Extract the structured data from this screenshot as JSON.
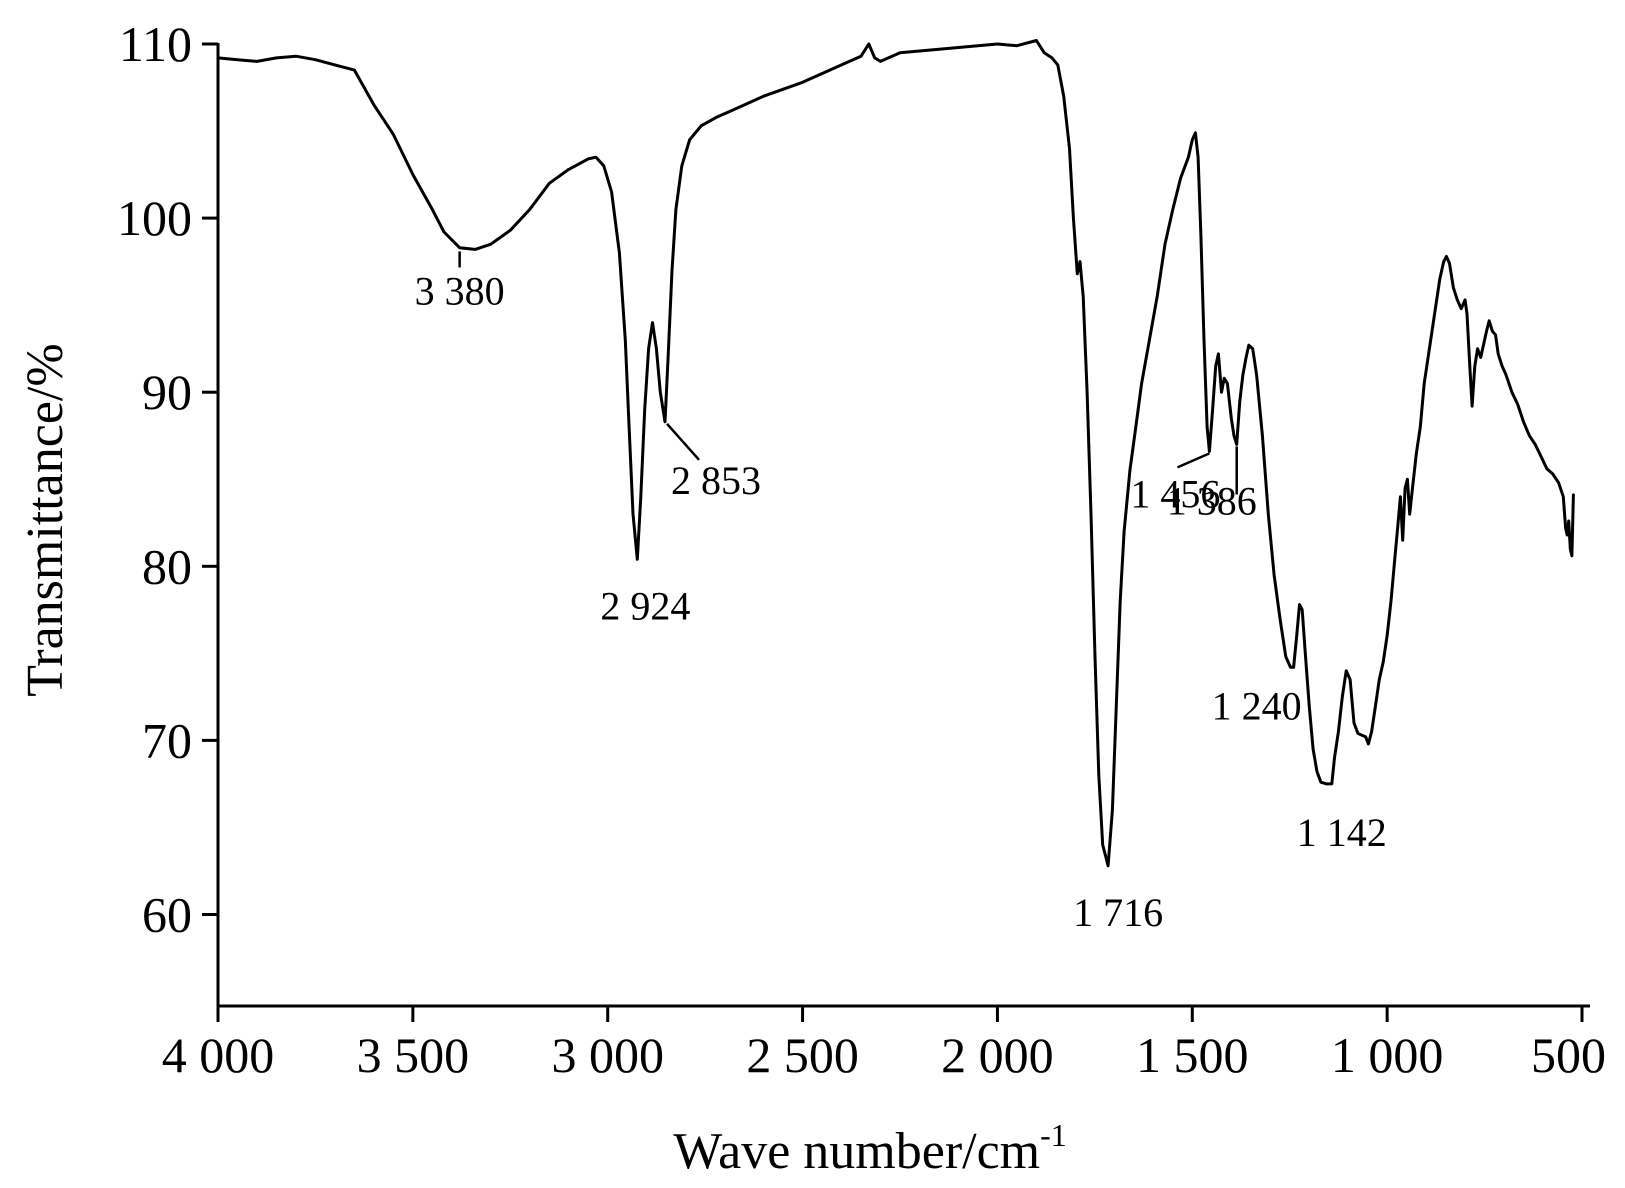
{
  "chart_data": {
    "type": "line",
    "xlabel": "Wave number/cm",
    "xlabel_superscript": "-1",
    "ylabel": "Transmittance/%",
    "xlim": [
      4000,
      450
    ],
    "ylim": [
      55,
      110
    ],
    "x_reversed": true,
    "grid": false,
    "legend": "none",
    "x_ticks": [
      4000,
      3500,
      3000,
      2500,
      2000,
      1500,
      1000,
      500
    ],
    "x_tick_labels": [
      "4 000",
      "3 500",
      "3 000",
      "2 500",
      "2 000",
      "1 500",
      "1 000",
      "500"
    ],
    "y_ticks": [
      60,
      70,
      80,
      90,
      100,
      110
    ],
    "y_tick_labels": [
      "60",
      "70",
      "80",
      "90",
      "100",
      "110"
    ],
    "series": [
      {
        "color": "#000000",
        "points": [
          [
            4000,
            109.2
          ],
          [
            3950,
            109.1
          ],
          [
            3900,
            109.0
          ],
          [
            3850,
            109.2
          ],
          [
            3800,
            109.3
          ],
          [
            3750,
            109.1
          ],
          [
            3700,
            108.8
          ],
          [
            3650,
            108.5
          ],
          [
            3600,
            106.5
          ],
          [
            3550,
            104.8
          ],
          [
            3500,
            102.5
          ],
          [
            3450,
            100.5
          ],
          [
            3420,
            99.2
          ],
          [
            3380,
            98.3
          ],
          [
            3340,
            98.2
          ],
          [
            3300,
            98.5
          ],
          [
            3250,
            99.3
          ],
          [
            3200,
            100.5
          ],
          [
            3150,
            102.0
          ],
          [
            3100,
            102.8
          ],
          [
            3050,
            103.4
          ],
          [
            3030,
            103.5
          ],
          [
            3010,
            103.0
          ],
          [
            2990,
            101.5
          ],
          [
            2970,
            98.0
          ],
          [
            2955,
            93.0
          ],
          [
            2945,
            88.0
          ],
          [
            2935,
            83.0
          ],
          [
            2924,
            80.4
          ],
          [
            2915,
            84.0
          ],
          [
            2905,
            89.0
          ],
          [
            2895,
            92.5
          ],
          [
            2885,
            94.0
          ],
          [
            2875,
            92.5
          ],
          [
            2865,
            90.0
          ],
          [
            2853,
            88.3
          ],
          [
            2845,
            92.0
          ],
          [
            2835,
            97.0
          ],
          [
            2825,
            100.5
          ],
          [
            2810,
            103.0
          ],
          [
            2790,
            104.5
          ],
          [
            2760,
            105.3
          ],
          [
            2720,
            105.8
          ],
          [
            2680,
            106.2
          ],
          [
            2600,
            107.0
          ],
          [
            2500,
            107.8
          ],
          [
            2400,
            108.8
          ],
          [
            2350,
            109.3
          ],
          [
            2330,
            110.0
          ],
          [
            2315,
            109.2
          ],
          [
            2300,
            109.0
          ],
          [
            2250,
            109.5
          ],
          [
            2200,
            109.6
          ],
          [
            2100,
            109.8
          ],
          [
            2000,
            110.0
          ],
          [
            1950,
            109.9
          ],
          [
            1900,
            110.2
          ],
          [
            1880,
            109.5
          ],
          [
            1860,
            109.2
          ],
          [
            1845,
            108.8
          ],
          [
            1830,
            107.0
          ],
          [
            1815,
            104.0
          ],
          [
            1805,
            100.0
          ],
          [
            1795,
            96.8
          ],
          [
            1788,
            97.5
          ],
          [
            1780,
            95.5
          ],
          [
            1770,
            90.0
          ],
          [
            1760,
            83.0
          ],
          [
            1750,
            75.0
          ],
          [
            1740,
            68.0
          ],
          [
            1730,
            64.0
          ],
          [
            1716,
            62.8
          ],
          [
            1705,
            66.0
          ],
          [
            1695,
            72.0
          ],
          [
            1685,
            78.0
          ],
          [
            1675,
            82.0
          ],
          [
            1660,
            85.5
          ],
          [
            1645,
            88.0
          ],
          [
            1630,
            90.5
          ],
          [
            1610,
            93.0
          ],
          [
            1590,
            95.5
          ],
          [
            1570,
            98.5
          ],
          [
            1550,
            100.5
          ],
          [
            1530,
            102.3
          ],
          [
            1510,
            103.5
          ],
          [
            1500,
            104.5
          ],
          [
            1492,
            104.9
          ],
          [
            1485,
            103.5
          ],
          [
            1478,
            99.0
          ],
          [
            1470,
            93.0
          ],
          [
            1462,
            88.0
          ],
          [
            1456,
            86.6
          ],
          [
            1448,
            89.0
          ],
          [
            1440,
            91.5
          ],
          [
            1433,
            92.2
          ],
          [
            1425,
            90.0
          ],
          [
            1418,
            90.8
          ],
          [
            1410,
            90.5
          ],
          [
            1400,
            88.5
          ],
          [
            1393,
            87.5
          ],
          [
            1386,
            87.0
          ],
          [
            1378,
            89.5
          ],
          [
            1370,
            91.0
          ],
          [
            1362,
            92.0
          ],
          [
            1355,
            92.7
          ],
          [
            1345,
            92.5
          ],
          [
            1335,
            91.0
          ],
          [
            1320,
            87.5
          ],
          [
            1305,
            83.0
          ],
          [
            1290,
            79.5
          ],
          [
            1275,
            77.0
          ],
          [
            1260,
            74.8
          ],
          [
            1248,
            74.2
          ],
          [
            1240,
            74.2
          ],
          [
            1232,
            76.0
          ],
          [
            1225,
            77.8
          ],
          [
            1218,
            77.5
          ],
          [
            1210,
            75.0
          ],
          [
            1200,
            72.0
          ],
          [
            1190,
            69.5
          ],
          [
            1180,
            68.2
          ],
          [
            1170,
            67.6
          ],
          [
            1155,
            67.5
          ],
          [
            1142,
            67.5
          ],
          [
            1135,
            69.0
          ],
          [
            1125,
            70.5
          ],
          [
            1115,
            72.5
          ],
          [
            1105,
            74.0
          ],
          [
            1095,
            73.5
          ],
          [
            1085,
            71.0
          ],
          [
            1075,
            70.4
          ],
          [
            1065,
            70.3
          ],
          [
            1055,
            70.2
          ],
          [
            1048,
            69.8
          ],
          [
            1040,
            70.5
          ],
          [
            1030,
            72.0
          ],
          [
            1020,
            73.5
          ],
          [
            1010,
            74.5
          ],
          [
            1000,
            76.0
          ],
          [
            990,
            78.0
          ],
          [
            980,
            80.5
          ],
          [
            972,
            82.5
          ],
          [
            966,
            84.0
          ],
          [
            960,
            81.5
          ],
          [
            954,
            84.5
          ],
          [
            948,
            85.0
          ],
          [
            942,
            83.0
          ],
          [
            935,
            84.5
          ],
          [
            925,
            86.5
          ],
          [
            915,
            88.0
          ],
          [
            905,
            90.5
          ],
          [
            895,
            92.0
          ],
          [
            885,
            93.5
          ],
          [
            875,
            95.0
          ],
          [
            865,
            96.5
          ],
          [
            855,
            97.5
          ],
          [
            848,
            97.8
          ],
          [
            840,
            97.4
          ],
          [
            830,
            96.0
          ],
          [
            820,
            95.3
          ],
          [
            810,
            94.8
          ],
          [
            800,
            95.3
          ],
          [
            795,
            94.5
          ],
          [
            788,
            91.5
          ],
          [
            782,
            89.2
          ],
          [
            775,
            91.5
          ],
          [
            768,
            92.5
          ],
          [
            760,
            92.0
          ],
          [
            752,
            92.8
          ],
          [
            745,
            93.5
          ],
          [
            738,
            94.1
          ],
          [
            730,
            93.5
          ],
          [
            722,
            93.3
          ],
          [
            715,
            92.2
          ],
          [
            705,
            91.5
          ],
          [
            695,
            91.0
          ],
          [
            680,
            90.0
          ],
          [
            665,
            89.3
          ],
          [
            650,
            88.3
          ],
          [
            635,
            87.5
          ],
          [
            620,
            87.0
          ],
          [
            605,
            86.3
          ],
          [
            590,
            85.6
          ],
          [
            575,
            85.3
          ],
          [
            560,
            84.8
          ],
          [
            548,
            84.0
          ],
          [
            542,
            82.2
          ],
          [
            538,
            81.8
          ],
          [
            534,
            82.6
          ],
          [
            530,
            81.0
          ],
          [
            526,
            80.6
          ],
          [
            522,
            84.1
          ]
        ]
      }
    ],
    "annotations": [
      {
        "text": "3 380",
        "x": 3380,
        "y": 98.2
      },
      {
        "text": "2 924",
        "x": 2924,
        "y": 80.4
      },
      {
        "text": "2 853",
        "x": 2853,
        "y": 88.3
      },
      {
        "text": "1 716",
        "x": 1716,
        "y": 62.8
      },
      {
        "text": "1 456",
        "x": 1456,
        "y": 86.6
      },
      {
        "text": "1 386",
        "x": 1386,
        "y": 87.0
      },
      {
        "text": "1 240",
        "x": 1240,
        "y": 74.2
      },
      {
        "text": "1 142",
        "x": 1142,
        "y": 67.5
      }
    ]
  }
}
